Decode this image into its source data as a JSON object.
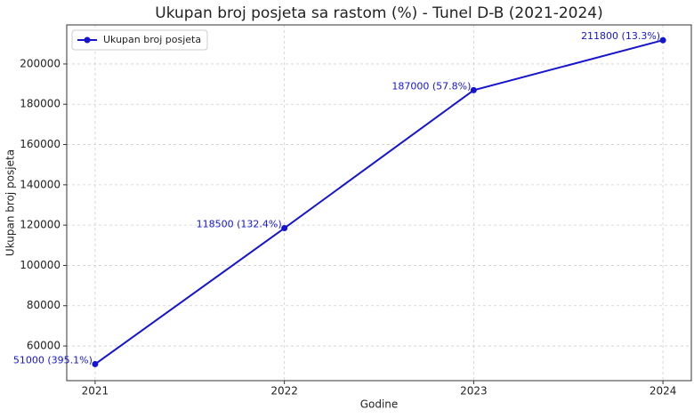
{
  "chart_data": {
    "type": "line",
    "title": "Ukupan broj posjeta sa rastom (%) - Tunel D-B (2021-2024)",
    "xlabel": "Godine",
    "ylabel": "Ukupan broj posjeta",
    "x": [
      2021,
      2022,
      2023,
      2024
    ],
    "series": [
      {
        "name": "Ukupan broj posjeta",
        "color": "#1515d0",
        "values": [
          51000,
          118500,
          187000,
          211800
        ],
        "value_labels": [
          "51000 (395.1%)",
          "118500 (132.4%)",
          "187000 (57.8%)",
          "211800 (13.3%)"
        ]
      }
    ],
    "xlim": [
      2020.85,
      2024.15
    ],
    "xticks": [
      2021,
      2022,
      2023,
      2024
    ],
    "ylim": [
      42800,
      219400
    ],
    "yticks": [
      60000,
      80000,
      100000,
      120000,
      140000,
      160000,
      180000,
      200000
    ],
    "grid": true,
    "legend": "upper-left"
  }
}
